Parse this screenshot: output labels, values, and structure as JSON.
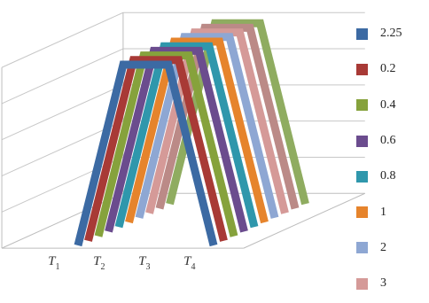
{
  "chart_data": {
    "type": "line",
    "variant": "3d-line",
    "title": "",
    "xlabel": "",
    "ylabel": "",
    "categories": [
      {
        "base": "T",
        "sub": "1"
      },
      {
        "base": "T",
        "sub": "2"
      },
      {
        "base": "T",
        "sub": "3"
      },
      {
        "base": "T",
        "sub": "4"
      }
    ],
    "yticks": [
      "0",
      "0.2",
      "0.4",
      "0.6",
      "0.8",
      "1"
    ],
    "ylim": [
      0,
      1
    ],
    "grid": true,
    "legend_position": "right",
    "series": [
      {
        "name": "2.25",
        "color": "#3c6aa3",
        "values": [
          0,
          1,
          1,
          0
        ]
      },
      {
        "name": "0.2",
        "color": "#a83a36",
        "values": [
          0,
          1,
          1,
          0
        ]
      },
      {
        "name": "0.4",
        "color": "#86a23c",
        "values": [
          0,
          1,
          1,
          0
        ]
      },
      {
        "name": "0.6",
        "color": "#6b4c8e",
        "values": [
          0,
          1,
          1,
          0
        ]
      },
      {
        "name": "0.8",
        "color": "#2f97ac",
        "values": [
          0,
          1,
          1,
          0
        ]
      },
      {
        "name": "1",
        "color": "#e6842c",
        "values": [
          0,
          1,
          1,
          0
        ]
      },
      {
        "name": "2",
        "color": "#8ea7d3",
        "values": [
          0,
          1,
          1,
          0
        ]
      },
      {
        "name": "3",
        "color": "#d59a98",
        "values": [
          0,
          1,
          1,
          0
        ]
      },
      {
        "name": "",
        "color": "#bb8a87",
        "values": [
          0,
          1,
          1,
          0
        ]
      },
      {
        "name": "",
        "color": "#8fac60",
        "values": [
          0,
          1,
          1,
          0
        ]
      }
    ]
  }
}
